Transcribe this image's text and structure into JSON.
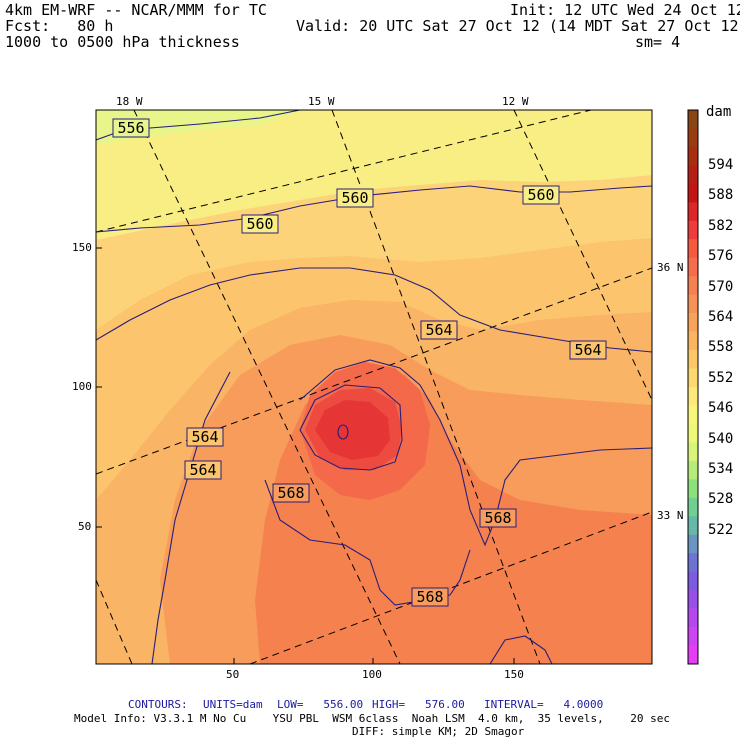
{
  "header": {
    "line1_left": "4km EM-WRF -- NCAR/MMM for TC",
    "line1_right": "Init: 12 UTC Wed 24 Oct 12",
    "line2_left": "Fcst:   80 h",
    "line2_right": "Valid: 20 UTC Sat 27 Oct 12 (14 MDT Sat 27 Oct 12)",
    "line3_left": "1000 to 0500 hPa thickness",
    "line3_right": "sm= 4"
  },
  "map": {
    "top_lon_labels": [
      "18 W",
      "15 W",
      "12 W"
    ],
    "right_lat_labels": [
      "36 N",
      "33 N"
    ],
    "x_ticks": [
      "50",
      "100",
      "150"
    ],
    "y_ticks": [
      "150",
      "100",
      "50"
    ],
    "contour_labels": [
      "556",
      "560",
      "560",
      "560",
      "564",
      "564",
      "564",
      "564",
      "568",
      "568",
      "568"
    ]
  },
  "colorbar": {
    "unit": "dam",
    "levels": [
      "594",
      "588",
      "582",
      "576",
      "570",
      "564",
      "558",
      "552",
      "546",
      "540",
      "534",
      "528",
      "522"
    ],
    "colors": [
      "#8a4516",
      "#9a3c10",
      "#a82e12",
      "#b51f16",
      "#c41515",
      "#dd2727",
      "#ee3c3c",
      "#f55a3f",
      "#f56d4c",
      "#f58052",
      "#f69258",
      "#f7a35c",
      "#f9b562",
      "#fbc768",
      "#fdd76f",
      "#fde97b",
      "#f8f67c",
      "#eef878",
      "#d8f57a",
      "#b6ec7a",
      "#8ee07d",
      "#6fd08f",
      "#67b8a8",
      "#6a95c0",
      "#6d73d2",
      "#7d5be0",
      "#9a4ee8",
      "#b548ee",
      "#cf44f2",
      "#e43df3"
    ]
  },
  "footer": {
    "contours_label": "CONTOURS:",
    "units_text": "UNITS=dam",
    "low_text": "LOW=   556.00",
    "high_text": "HIGH=   576.00",
    "interval_text": "INTERVAL=   4.0000",
    "model_info": "Model Info: V3.3.1 M No Cu    YSU PBL  WSM 6class  Noah LSM  4.0 km,  35 levels,    20 sec",
    "diff_info": "DIFF: simple KM; 2D Smagor"
  }
}
